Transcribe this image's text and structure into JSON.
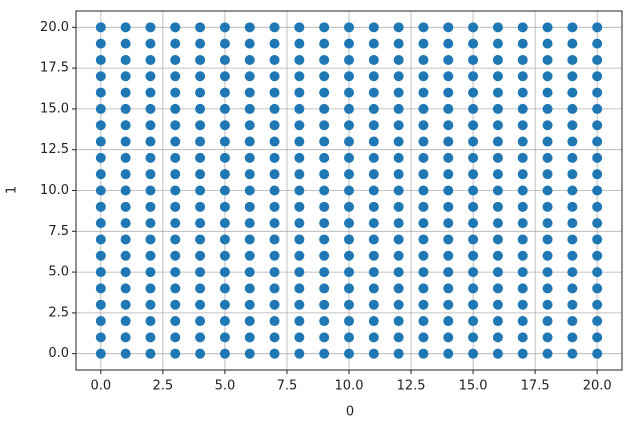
{
  "chart_data": {
    "type": "scatter",
    "x_label": "0",
    "y_label": "1",
    "color": "#1f77b4",
    "grid": true,
    "xlim": [
      -1,
      21
    ],
    "ylim": [
      -1,
      21
    ],
    "xticks": [
      {
        "value": 0,
        "label": "0.0"
      },
      2.5,
      {
        "value": 5,
        "label": "5.0"
      },
      7.5,
      {
        "value": 10,
        "label": "10.0"
      },
      12.5,
      {
        "value": 15,
        "label": "15.0"
      },
      17.5,
      {
        "value": 20,
        "label": "20.0"
      }
    ],
    "yticks": [
      {
        "value": 0,
        "label": "0.0"
      },
      2.5,
      {
        "value": 5,
        "label": "5.0"
      },
      7.5,
      {
        "value": 10,
        "label": "10.0"
      },
      12.5,
      {
        "value": 15,
        "label": "15.0"
      },
      17.5,
      {
        "value": 20,
        "label": "20.0"
      }
    ],
    "x": [
      0,
      0,
      0,
      0,
      0,
      0,
      0,
      0,
      0,
      0,
      0,
      0,
      0,
      0,
      0,
      0,
      0,
      0,
      0,
      0,
      0,
      1,
      1,
      1,
      1,
      1,
      1,
      1,
      1,
      1,
      1,
      1,
      1,
      1,
      1,
      1,
      1,
      1,
      1,
      1,
      1,
      1,
      2,
      2,
      2,
      2,
      2,
      2,
      2,
      2,
      2,
      2,
      2,
      2,
      2,
      2,
      2,
      2,
      2,
      2,
      2,
      2,
      2,
      3,
      3,
      3,
      3,
      3,
      3,
      3,
      3,
      3,
      3,
      3,
      3,
      3,
      3,
      3,
      3,
      3,
      3,
      3,
      3,
      3,
      4,
      4,
      4,
      4,
      4,
      4,
      4,
      4,
      4,
      4,
      4,
      4,
      4,
      4,
      4,
      4,
      4,
      4,
      4,
      4,
      4,
      5,
      5,
      5,
      5,
      5,
      5,
      5,
      5,
      5,
      5,
      5,
      5,
      5,
      5,
      5,
      5,
      5,
      5,
      5,
      5,
      5,
      6,
      6,
      6,
      6,
      6,
      6,
      6,
      6,
      6,
      6,
      6,
      6,
      6,
      6,
      6,
      6,
      6,
      6,
      6,
      6,
      6,
      7,
      7,
      7,
      7,
      7,
      7,
      7,
      7,
      7,
      7,
      7,
      7,
      7,
      7,
      7,
      7,
      7,
      7,
      7,
      7,
      7,
      8,
      8,
      8,
      8,
      8,
      8,
      8,
      8,
      8,
      8,
      8,
      8,
      8,
      8,
      8,
      8,
      8,
      8,
      8,
      8,
      8,
      9,
      9,
      9,
      9,
      9,
      9,
      9,
      9,
      9,
      9,
      9,
      9,
      9,
      9,
      9,
      9,
      9,
      9,
      9,
      9,
      9,
      10,
      10,
      10,
      10,
      10,
      10,
      10,
      10,
      10,
      10,
      10,
      10,
      10,
      10,
      10,
      10,
      10,
      10,
      10,
      10,
      10,
      11,
      11,
      11,
      11,
      11,
      11,
      11,
      11,
      11,
      11,
      11,
      11,
      11,
      11,
      11,
      11,
      11,
      11,
      11,
      11,
      11,
      12,
      12,
      12,
      12,
      12,
      12,
      12,
      12,
      12,
      12,
      12,
      12,
      12,
      12,
      12,
      12,
      12,
      12,
      12,
      12,
      12,
      13,
      13,
      13,
      13,
      13,
      13,
      13,
      13,
      13,
      13,
      13,
      13,
      13,
      13,
      13,
      13,
      13,
      13,
      13,
      13,
      13,
      14,
      14,
      14,
      14,
      14,
      14,
      14,
      14,
      14,
      14,
      14,
      14,
      14,
      14,
      14,
      14,
      14,
      14,
      14,
      14,
      14,
      15,
      15,
      15,
      15,
      15,
      15,
      15,
      15,
      15,
      15,
      15,
      15,
      15,
      15,
      15,
      15,
      15,
      15,
      15,
      15,
      15,
      16,
      16,
      16,
      16,
      16,
      16,
      16,
      16,
      16,
      16,
      16,
      16,
      16,
      16,
      16,
      16,
      16,
      16,
      16,
      16,
      16,
      17,
      17,
      17,
      17,
      17,
      17,
      17,
      17,
      17,
      17,
      17,
      17,
      17,
      17,
      17,
      17,
      17,
      17,
      17,
      17,
      17,
      18,
      18,
      18,
      18,
      18,
      18,
      18,
      18,
      18,
      18,
      18,
      18,
      18,
      18,
      18,
      18,
      18,
      18,
      18,
      18,
      18,
      19,
      19,
      19,
      19,
      19,
      19,
      19,
      19,
      19,
      19,
      19,
      19,
      19,
      19,
      19,
      19,
      19,
      19,
      19,
      19,
      19,
      20,
      20,
      20,
      20,
      20,
      20,
      20,
      20,
      20,
      20,
      20,
      20,
      20,
      20,
      20,
      20,
      20,
      20,
      20,
      20,
      20
    ],
    "values": [
      0,
      1,
      2,
      3,
      4,
      5,
      6,
      7,
      8,
      9,
      10,
      11,
      12,
      13,
      14,
      15,
      16,
      17,
      18,
      19,
      20,
      0,
      1,
      2,
      3,
      4,
      5,
      6,
      7,
      8,
      9,
      10,
      11,
      12,
      13,
      14,
      15,
      16,
      17,
      18,
      19,
      20,
      0,
      1,
      2,
      3,
      4,
      5,
      6,
      7,
      8,
      9,
      10,
      11,
      12,
      13,
      14,
      15,
      16,
      17,
      18,
      19,
      20,
      0,
      1,
      2,
      3,
      4,
      5,
      6,
      7,
      8,
      9,
      10,
      11,
      12,
      13,
      14,
      15,
      16,
      17,
      18,
      19,
      20,
      0,
      1,
      2,
      3,
      4,
      5,
      6,
      7,
      8,
      9,
      10,
      11,
      12,
      13,
      14,
      15,
      16,
      17,
      18,
      19,
      20,
      0,
      1,
      2,
      3,
      4,
      5,
      6,
      7,
      8,
      9,
      10,
      11,
      12,
      13,
      14,
      15,
      16,
      17,
      18,
      19,
      20,
      0,
      1,
      2,
      3,
      4,
      5,
      6,
      7,
      8,
      9,
      10,
      11,
      12,
      13,
      14,
      15,
      16,
      17,
      18,
      19,
      20,
      0,
      1,
      2,
      3,
      4,
      5,
      6,
      7,
      8,
      9,
      10,
      11,
      12,
      13,
      14,
      15,
      16,
      17,
      18,
      19,
      20,
      0,
      1,
      2,
      3,
      4,
      5,
      6,
      7,
      8,
      9,
      10,
      11,
      12,
      13,
      14,
      15,
      16,
      17,
      18,
      19,
      20,
      0,
      1,
      2,
      3,
      4,
      5,
      6,
      7,
      8,
      9,
      10,
      11,
      12,
      13,
      14,
      15,
      16,
      17,
      18,
      19,
      20,
      0,
      1,
      2,
      3,
      4,
      5,
      6,
      7,
      8,
      9,
      10,
      11,
      12,
      13,
      14,
      15,
      16,
      17,
      18,
      19,
      20,
      0,
      1,
      2,
      3,
      4,
      5,
      6,
      7,
      8,
      9,
      10,
      11,
      12,
      13,
      14,
      15,
      16,
      17,
      18,
      19,
      20,
      0,
      1,
      2,
      3,
      4,
      5,
      6,
      7,
      8,
      9,
      10,
      11,
      12,
      13,
      14,
      15,
      16,
      17,
      18,
      19,
      20,
      0,
      1,
      2,
      3,
      4,
      5,
      6,
      7,
      8,
      9,
      10,
      11,
      12,
      13,
      14,
      15,
      16,
      17,
      18,
      19,
      20,
      0,
      1,
      2,
      3,
      4,
      5,
      6,
      7,
      8,
      9,
      10,
      11,
      12,
      13,
      14,
      15,
      16,
      17,
      18,
      19,
      20,
      0,
      1,
      2,
      3,
      4,
      5,
      6,
      7,
      8,
      9,
      10,
      11,
      12,
      13,
      14,
      15,
      16,
      17,
      18,
      19,
      20,
      0,
      1,
      2,
      3,
      4,
      5,
      6,
      7,
      8,
      9,
      10,
      11,
      12,
      13,
      14,
      15,
      16,
      17,
      18,
      19,
      20,
      0,
      1,
      2,
      3,
      4,
      5,
      6,
      7,
      8,
      9,
      10,
      11,
      12,
      13,
      14,
      15,
      16,
      17,
      18,
      19,
      20,
      0,
      1,
      2,
      3,
      4,
      5,
      6,
      7,
      8,
      9,
      10,
      11,
      12,
      13,
      14,
      15,
      16,
      17,
      18,
      19,
      20,
      0,
      1,
      2,
      3,
      4,
      5,
      6,
      7,
      8,
      9,
      10,
      11,
      12,
      13,
      14,
      15,
      16,
      17,
      18,
      19,
      20,
      0,
      1,
      2,
      3,
      4,
      5,
      6,
      7,
      8,
      9,
      10,
      11,
      12,
      13,
      14,
      15,
      16,
      17,
      18,
      19,
      20
    ]
  }
}
